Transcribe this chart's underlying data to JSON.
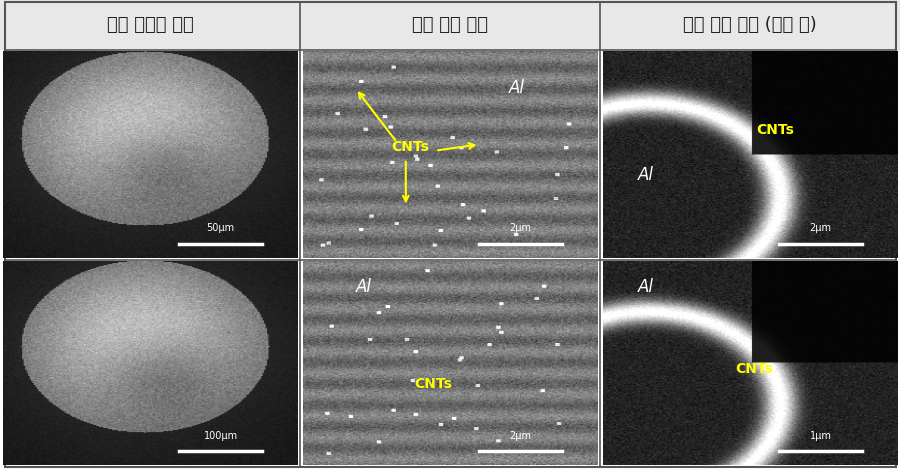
{
  "headers": [
    "제조 분말의 형상",
    "분말 표면 관찰",
    "분말 내부 관찰 (부식 후)"
  ],
  "header_bg": "#e8e8e8",
  "header_fontsize": 13,
  "header_color": "#222222",
  "outer_border_color": "#555555",
  "fig_bg": "#ffffff",
  "scale_bars": {
    "row0_col0": "50μm",
    "row1_col0": "100μm",
    "row0_col1": "2μm",
    "row1_col1": "2μm",
    "row0_col2": "2μm",
    "row1_col2": "1μm"
  }
}
